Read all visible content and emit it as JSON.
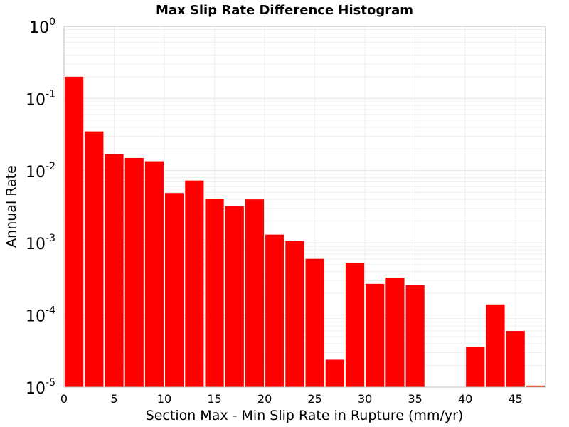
{
  "chart_data": {
    "type": "bar",
    "title": "Max Slip Rate Difference Histogram",
    "xlabel": "Section Max - Min Slip Rate in Rupture (mm/yr)",
    "ylabel": "Annual Rate",
    "y_scale": "log",
    "grid": true,
    "xlim": [
      0,
      48
    ],
    "ylim": [
      1e-05,
      1
    ],
    "x_ticks": [
      "0",
      "5",
      "10",
      "15",
      "20",
      "25",
      "30",
      "35",
      "40",
      "45"
    ],
    "y_ticks": [
      {
        "base": "10",
        "exp": "0"
      },
      {
        "base": "10",
        "exp": "-1"
      },
      {
        "base": "10",
        "exp": "-2"
      },
      {
        "base": "10",
        "exp": "-3"
      },
      {
        "base": "10",
        "exp": "-4"
      },
      {
        "base": "10",
        "exp": "-5"
      }
    ],
    "bar_width": 2,
    "bar_color": "#ff0000",
    "bars": [
      {
        "x": 0,
        "value": 0.2
      },
      {
        "x": 2,
        "value": 0.035
      },
      {
        "x": 4,
        "value": 0.017
      },
      {
        "x": 6,
        "value": 0.015
      },
      {
        "x": 8,
        "value": 0.0135
      },
      {
        "x": 10,
        "value": 0.0049
      },
      {
        "x": 12,
        "value": 0.0073
      },
      {
        "x": 14,
        "value": 0.0041
      },
      {
        "x": 16,
        "value": 0.0032
      },
      {
        "x": 18,
        "value": 0.004
      },
      {
        "x": 20,
        "value": 0.0013
      },
      {
        "x": 22,
        "value": 0.00106
      },
      {
        "x": 24,
        "value": 0.0006
      },
      {
        "x": 26,
        "value": 2.4e-05
      },
      {
        "x": 28,
        "value": 0.00053
      },
      {
        "x": 30,
        "value": 0.00027
      },
      {
        "x": 32,
        "value": 0.00033
      },
      {
        "x": 34,
        "value": 0.00026
      },
      {
        "x": 40,
        "value": 3.6e-05
      },
      {
        "x": 42,
        "value": 0.00014
      },
      {
        "x": 44,
        "value": 6e-05
      },
      {
        "x": 46,
        "value": 1.05e-05
      }
    ]
  }
}
